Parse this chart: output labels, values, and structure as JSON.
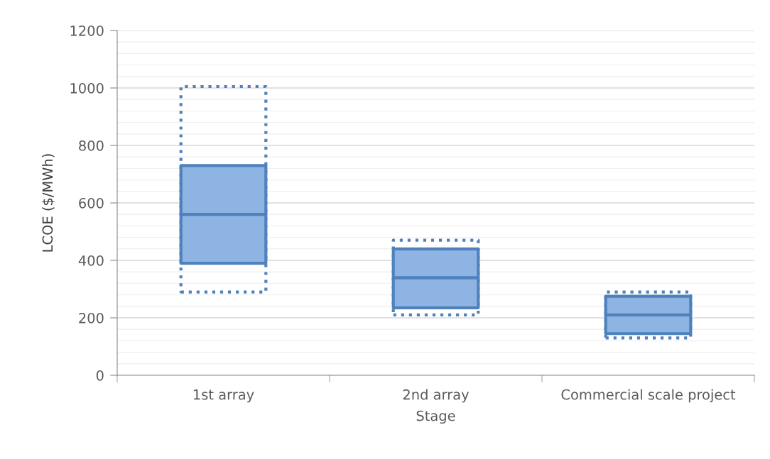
{
  "chart_data": {
    "type": "bar",
    "xlabel": "Stage",
    "ylabel": "LCOE ($/MWh)",
    "categories": [
      "1st array",
      "2nd array",
      "Commercial scale project"
    ],
    "series": [
      {
        "color": "#4f81bd",
        "line_style": "dotted",
        "base": [
          290,
          210,
          130
        ],
        "values": [
          715,
          260,
          160
        ]
      },
      {
        "color": "#8eb4e3",
        "base": [
          390,
          235,
          145
        ],
        "values": [
          170,
          105,
          65
        ]
      },
      {
        "color": "#8eb4e3",
        "base": [
          560,
          340,
          210
        ],
        "values": [
          170,
          100,
          65
        ]
      }
    ],
    "ylim": [
      0,
      1200
    ],
    "yticks": [
      0,
      200,
      400,
      600,
      800,
      1000,
      1200
    ],
    "grid": "y"
  }
}
